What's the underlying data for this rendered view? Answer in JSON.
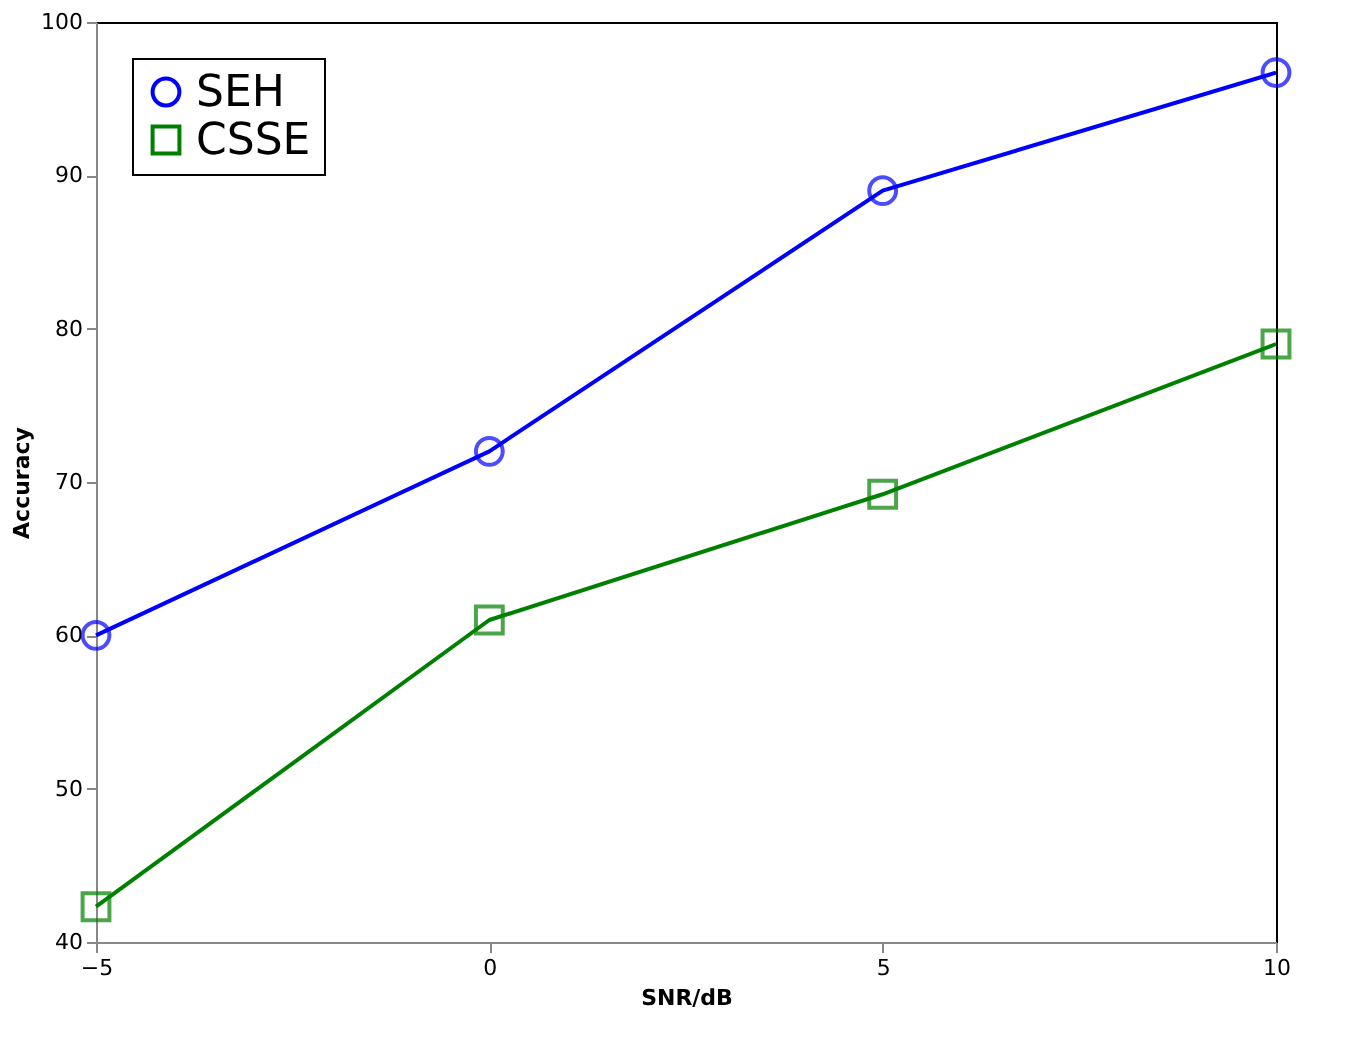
{
  "chart_data": {
    "type": "line",
    "xlabel": "SNR/dB",
    "ylabel": "Accuracy",
    "x": [
      -5,
      0,
      5,
      10
    ],
    "series": [
      {
        "name": "SEH",
        "color": "#0000ff",
        "marker": "circle",
        "values": [
          60,
          72,
          89,
          96.7
        ]
      },
      {
        "name": "CSSE",
        "color": "#008000",
        "marker": "square",
        "values": [
          42.3,
          61,
          69.2,
          79
        ]
      }
    ],
    "xlim": [
      -5,
      10
    ],
    "xticks": [
      -5,
      0,
      5,
      10
    ],
    "ylim": [
      40,
      100
    ],
    "yticks": [
      40,
      50,
      60,
      70,
      80,
      90,
      100
    ],
    "grid": false,
    "legend": "top left",
    "line_style": "solid"
  }
}
